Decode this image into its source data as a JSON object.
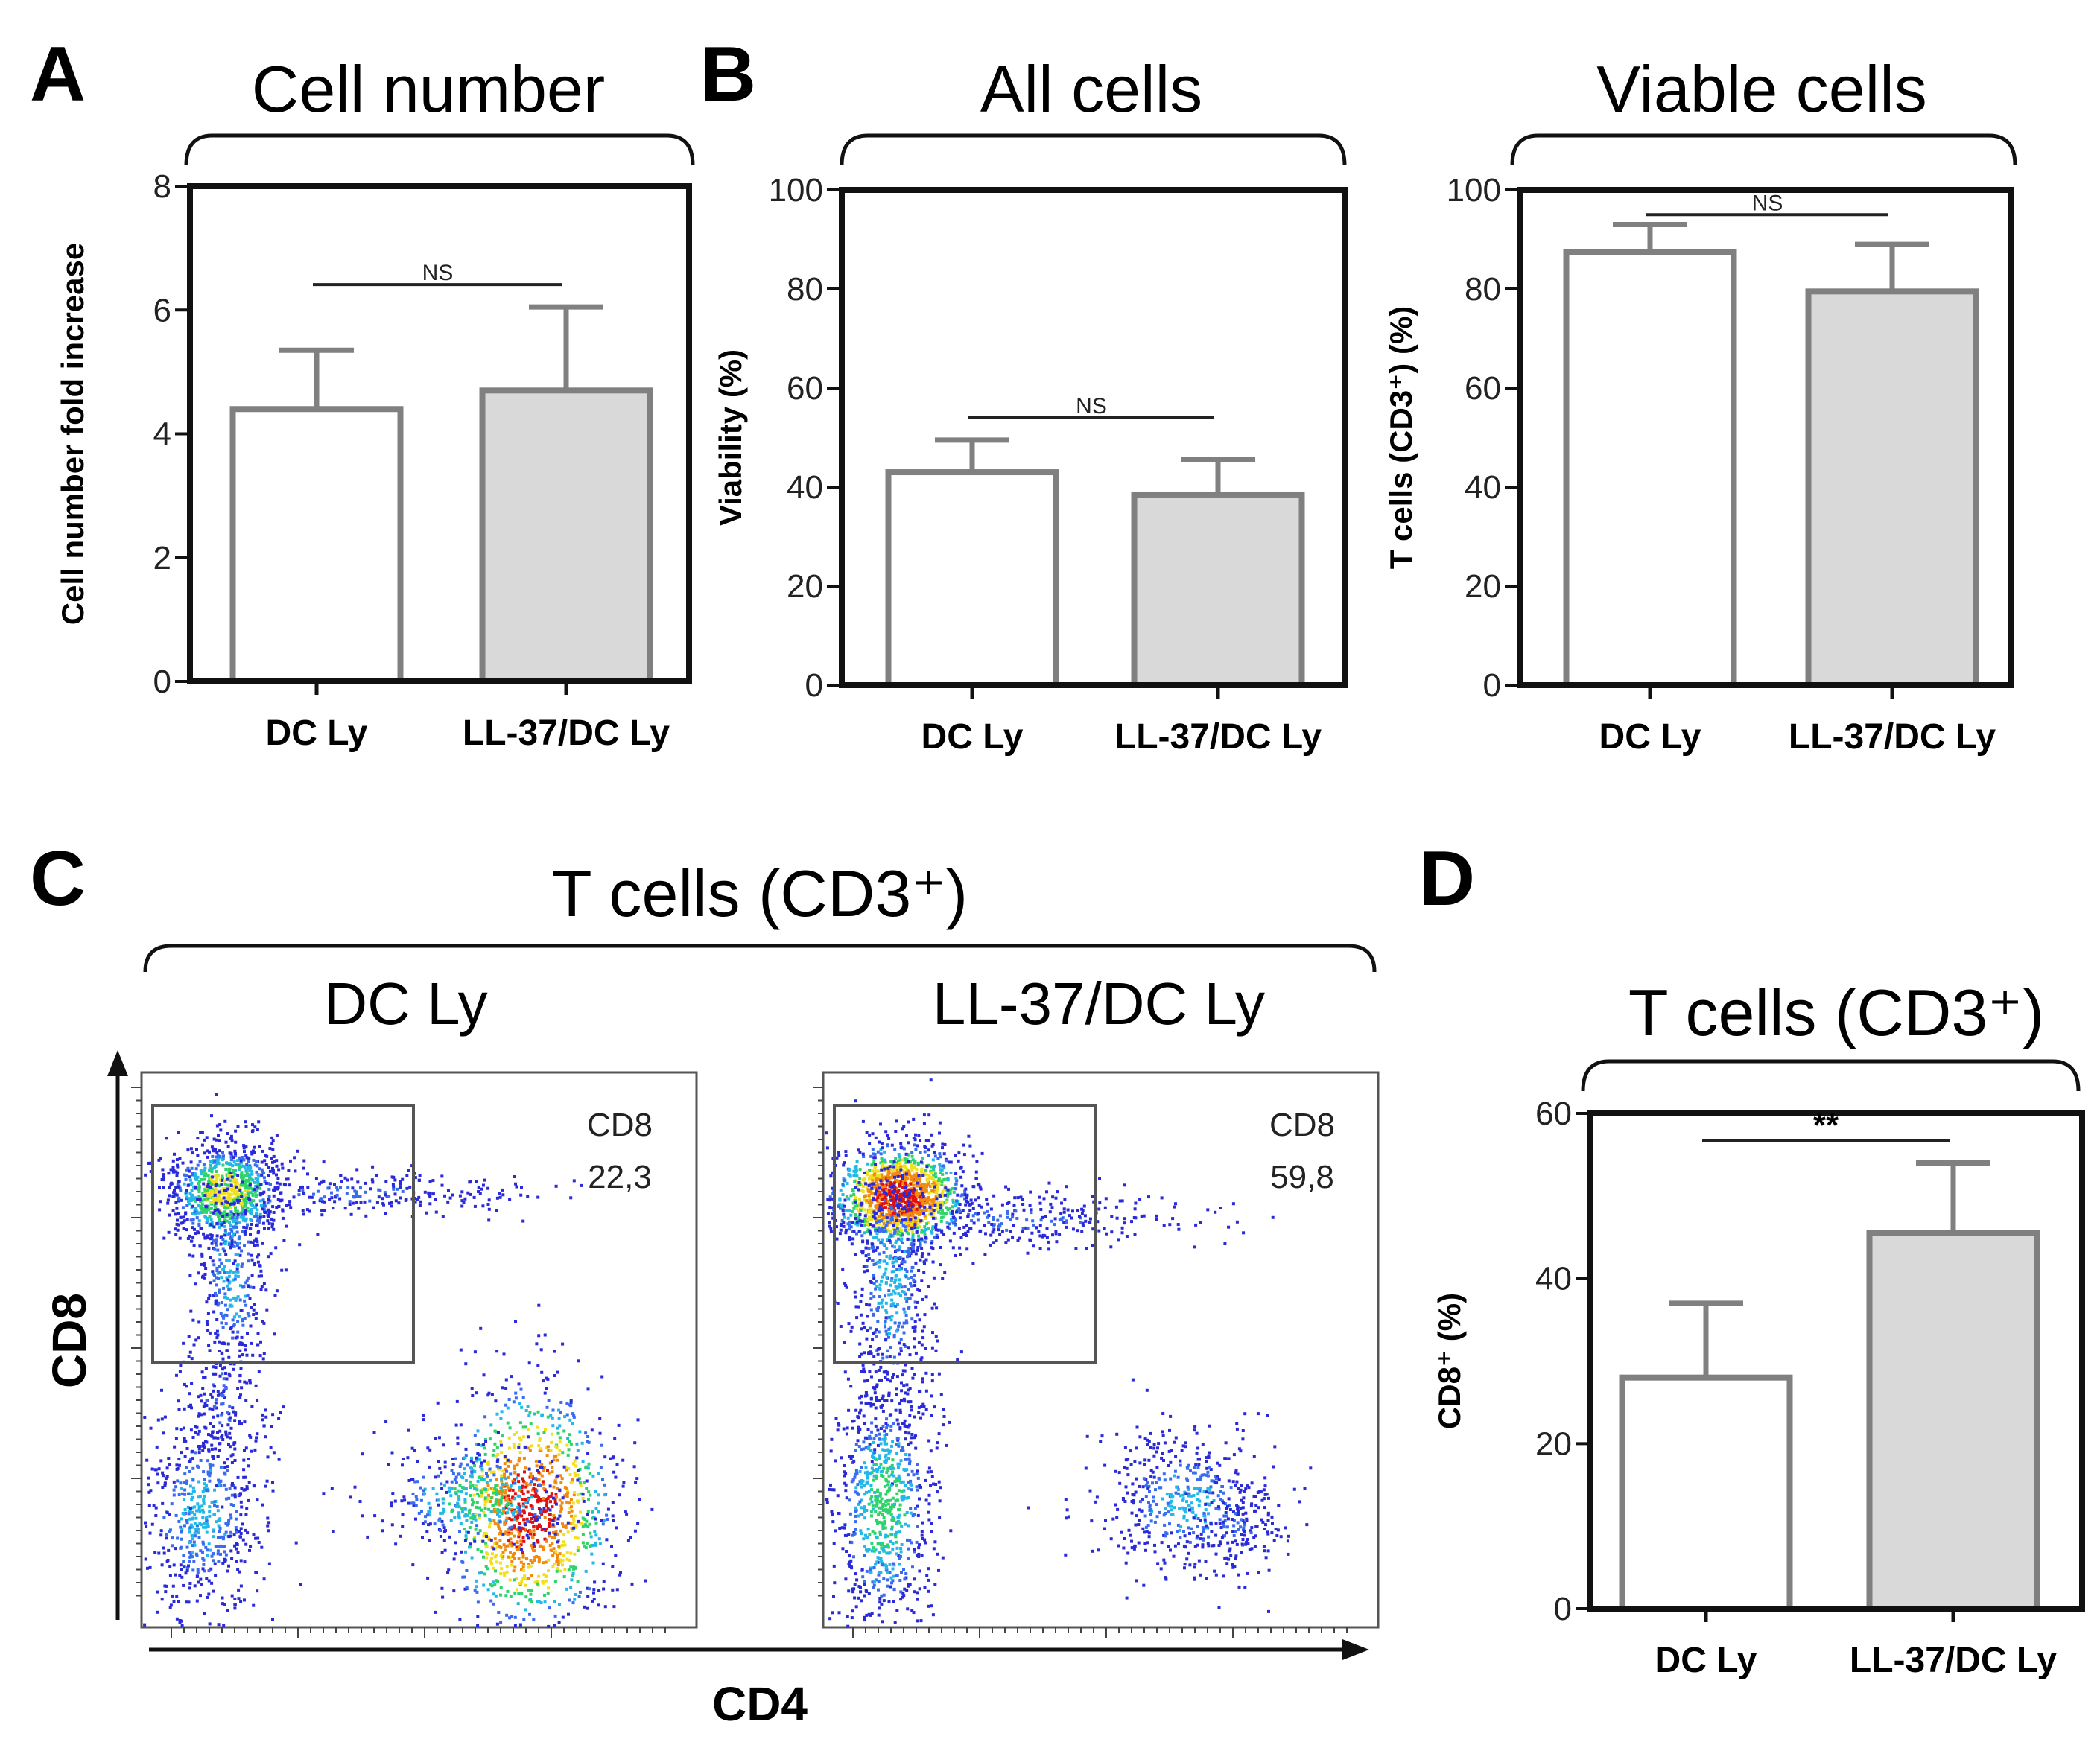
{
  "colors": {
    "bar_dc": "#ffffff",
    "bar_ll37": "#d9d9d9",
    "bar_stroke": "#808080",
    "axis": "#111111"
  },
  "chart_data": [
    {
      "id": "A",
      "panel_letter": "A",
      "type": "bar",
      "title": "Cell number",
      "xlabel": "",
      "ylabel": "Cell number fold increase",
      "categories": [
        "DC Ly",
        "LL-37/DC Ly"
      ],
      "values": [
        4.4,
        4.7
      ],
      "errors": [
        0.95,
        1.35
      ],
      "ylim": [
        0,
        8
      ],
      "yticks": [
        0,
        2,
        4,
        6,
        8
      ],
      "significance": "NS"
    },
    {
      "id": "B1",
      "panel_letter": "B",
      "type": "bar",
      "title": "All cells",
      "xlabel": "",
      "ylabel": "Viability (%)",
      "categories": [
        "DC Ly",
        "LL-37/DC Ly"
      ],
      "values": [
        43,
        38.5
      ],
      "errors": [
        6.5,
        7
      ],
      "ylim": [
        0,
        100
      ],
      "yticks": [
        0,
        20,
        40,
        60,
        80,
        100
      ],
      "significance": "NS"
    },
    {
      "id": "B2",
      "panel_letter": "",
      "type": "bar",
      "title": "Viable cells",
      "xlabel": "",
      "ylabel": "T cells (CD3⁺) (%)",
      "categories": [
        "DC Ly",
        "LL-37/DC Ly"
      ],
      "values": [
        87.5,
        79.5
      ],
      "errors": [
        5.5,
        9.5
      ],
      "ylim": [
        0,
        100
      ],
      "yticks": [
        0,
        20,
        40,
        60,
        80,
        100
      ],
      "significance": "NS"
    },
    {
      "id": "D",
      "panel_letter": "D",
      "type": "bar",
      "title": "T cells (CD3⁺)",
      "xlabel": "",
      "ylabel": "CD8⁺ (%)",
      "categories": [
        "DC Ly",
        "LL-37/DC Ly"
      ],
      "values": [
        28,
        45.5
      ],
      "errors": [
        9,
        8.5
      ],
      "ylim": [
        0,
        60
      ],
      "yticks": [
        0,
        20,
        40,
        60
      ],
      "significance": "**"
    }
  ],
  "flow": {
    "panel_letter": "C",
    "title": "T cells (CD3⁺)",
    "x_axis_label": "CD4",
    "y_axis_label": "CD8",
    "plots": [
      {
        "subtitle": "DC Ly",
        "gate_label": "CD8",
        "gate_value": "22,3"
      },
      {
        "subtitle": "LL-37/DC Ly",
        "gate_label": "CD8",
        "gate_value": "59,8"
      }
    ]
  }
}
